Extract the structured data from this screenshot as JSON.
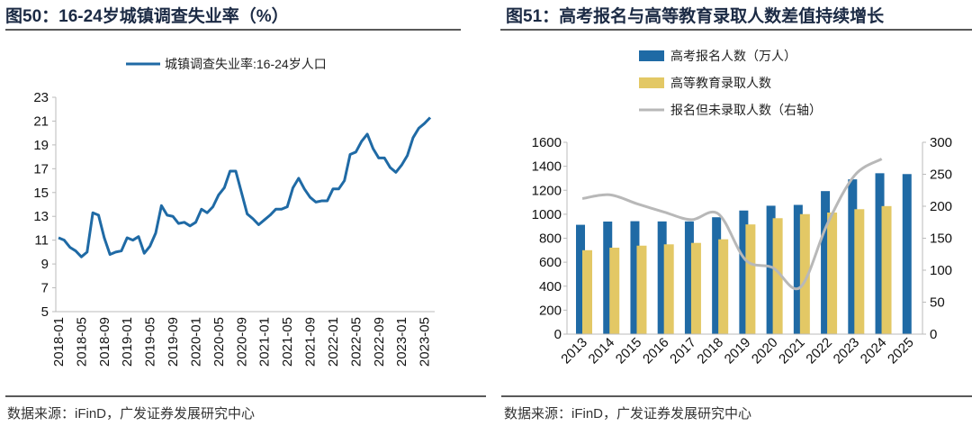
{
  "chart_data": [
    {
      "type": "line",
      "title": "图50：16-24岁城镇调查失业率（%）",
      "legend": "城镇调查失业率:16-24岁人口",
      "legend_position": "top-center",
      "color": "#1f6aa5",
      "ylim": [
        5,
        23
      ],
      "yticks": [
        "5",
        "7",
        "9",
        "11",
        "13",
        "15",
        "17",
        "19",
        "21",
        "23"
      ],
      "xticks": [
        "2018-01",
        "2018-05",
        "2018-09",
        "2019-01",
        "2019-05",
        "2019-09",
        "2020-01",
        "2020-05",
        "2020-09",
        "2021-01",
        "2021-05",
        "2021-09",
        "2022-01",
        "2022-05",
        "2022-09",
        "2023-01",
        "2023-05"
      ],
      "x_start": "2018-01",
      "x_end": "2023-06",
      "values": [
        11.2,
        11.0,
        10.4,
        10.1,
        9.6,
        10.0,
        13.3,
        13.1,
        11.2,
        9.8,
        10.0,
        10.1,
        11.2,
        11.0,
        11.3,
        9.9,
        10.5,
        11.6,
        13.9,
        13.1,
        13.0,
        12.4,
        12.5,
        12.2,
        12.5,
        13.6,
        13.3,
        13.8,
        14.8,
        15.4,
        16.8,
        16.8,
        15.0,
        13.2,
        12.8,
        12.3,
        12.7,
        13.1,
        13.6,
        13.6,
        13.8,
        15.4,
        16.2,
        15.3,
        14.6,
        14.2,
        14.3,
        14.3,
        15.3,
        15.3,
        16.0,
        18.2,
        18.4,
        19.3,
        19.9,
        18.7,
        17.9,
        17.9,
        17.1,
        16.7,
        17.3,
        18.1,
        19.6,
        20.4,
        20.8,
        21.3
      ],
      "source": "数据来源：iFinD，广发证券发展研究中心"
    },
    {
      "type": "bar",
      "title": "图51：高考报名与高等教育录取人数差值持续增长",
      "categories": [
        "2013",
        "2014",
        "2015",
        "2016",
        "2017",
        "2018",
        "2019",
        "2020",
        "2021",
        "2022",
        "2023",
        "2024",
        "2025"
      ],
      "ylim": [
        0,
        1600
      ],
      "yticks": [
        "0",
        "200",
        "400",
        "600",
        "800",
        "1000",
        "1200",
        "1400",
        "1600"
      ],
      "y2lim": [
        0,
        300
      ],
      "y2ticks": [
        "0",
        "50",
        "100",
        "150",
        "200",
        "250",
        "300"
      ],
      "series": [
        {
          "name": "高考报名人数（万人）",
          "type": "bar",
          "axis": "left",
          "color": "#1f6aa5",
          "values": [
            912,
            939,
            942,
            940,
            940,
            975,
            1031,
            1071,
            1078,
            1193,
            1291,
            1342,
            1335
          ]
        },
        {
          "name": "高等教育录取人数",
          "type": "bar",
          "axis": "left",
          "color": "#e3c865",
          "values": [
            700,
            721,
            738,
            749,
            761,
            791,
            915,
            967,
            1001,
            1014,
            1042,
            1068,
            null
          ]
        },
        {
          "name": "报名但未录取人数（右轴）",
          "type": "line",
          "axis": "right",
          "color": "#b8b8b8",
          "values": [
            212,
            218,
            204,
            191,
            179,
            188,
            116,
            104,
            73,
            172,
            248,
            274,
            null
          ]
        }
      ],
      "source": "数据来源：iFinD，广发证券发展研究中心"
    }
  ]
}
